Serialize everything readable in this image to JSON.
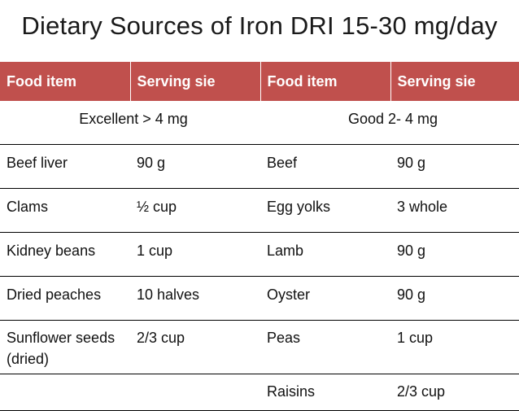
{
  "title": "Dietary Sources of Iron DRI 15-30 mg/day",
  "headers": [
    "Food item",
    "Serving sie",
    "Food item",
    "Serving sie"
  ],
  "bands": [
    "Excellent > 4 mg",
    "Good  2- 4 mg"
  ],
  "rows": [
    [
      "Beef liver",
      "90 g",
      "Beef",
      "90 g"
    ],
    [
      "Clams",
      "½ cup",
      "Egg yolks",
      "3 whole"
    ],
    [
      "Kidney beans",
      "1 cup",
      "Lamb",
      "90 g"
    ],
    [
      "Dried peaches",
      "10 halves",
      "Oyster",
      "90 g"
    ],
    [
      "Sunflower seeds (dried)",
      "2/3 cup",
      "Peas",
      "1 cup"
    ],
    [
      "",
      "",
      "Raisins",
      "2/3 cup"
    ]
  ],
  "colors": {
    "header_bg": "#c0504d",
    "header_text": "#ffffff"
  }
}
